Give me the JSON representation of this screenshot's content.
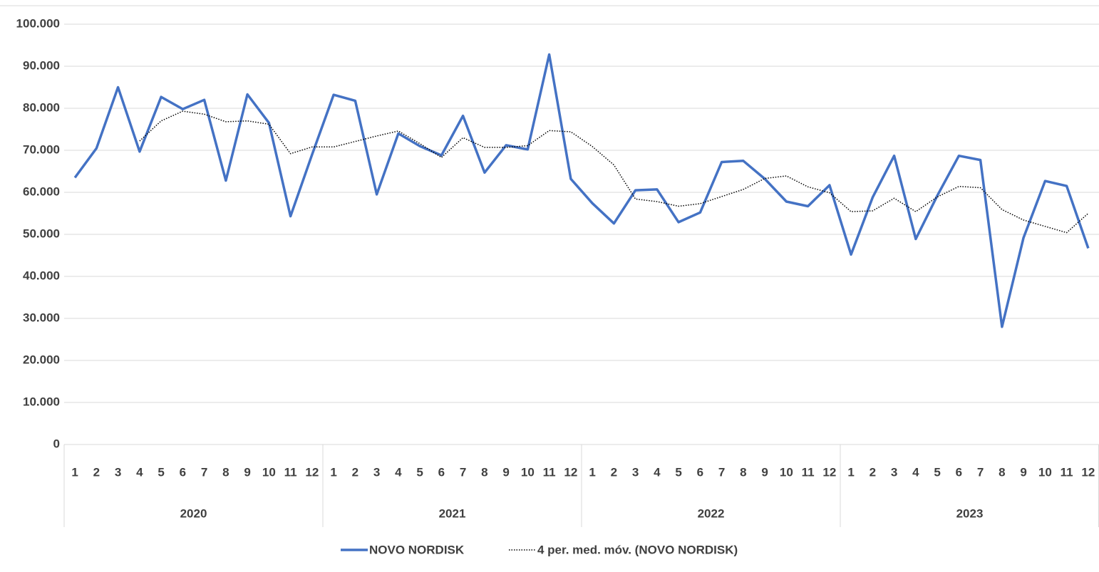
{
  "chart_data": {
    "type": "line",
    "categories": [
      "1",
      "2",
      "3",
      "4",
      "5",
      "6",
      "7",
      "8",
      "9",
      "10",
      "11",
      "12",
      "1",
      "2",
      "3",
      "4",
      "5",
      "6",
      "7",
      "8",
      "9",
      "10",
      "11",
      "12",
      "1",
      "2",
      "3",
      "4",
      "5",
      "6",
      "7",
      "8",
      "9",
      "10",
      "11",
      "12",
      "1",
      "2",
      "3",
      "4",
      "5",
      "6",
      "7",
      "8",
      "9",
      "10",
      "11",
      "12"
    ],
    "groups": [
      "2020",
      "2021",
      "2022",
      "2023"
    ],
    "series": [
      {
        "name": "NOVO NORDISK",
        "color": "#4472c4",
        "dash": "solid",
        "values": [
          63500,
          70500,
          85000,
          69700,
          82700,
          79800,
          82000,
          62800,
          83300,
          76500,
          54300,
          69000,
          83200,
          81800,
          59500,
          74000,
          71000,
          68800,
          78200,
          64700,
          71200,
          70200,
          92800,
          63200,
          57400,
          52600,
          60500,
          60700,
          52900,
          55200,
          67200,
          67500,
          63200,
          57800,
          56700,
          61700,
          45200,
          58800,
          68700,
          48900,
          59200,
          68700,
          67700,
          28000,
          49200,
          62700,
          61500,
          46700
        ]
      },
      {
        "name": "4 per. med. móv. (NOVO NORDISK)",
        "color": "#000000",
        "dash": "dotted",
        "values": [
          null,
          null,
          null,
          72200,
          77000,
          79300,
          78600,
          76800,
          77000,
          76200,
          69200,
          70800,
          70800,
          72100,
          73400,
          74600,
          71600,
          68300,
          73000,
          70700,
          70700,
          71100,
          74700,
          74400,
          70900,
          66500,
          58400,
          57800,
          56700,
          57300,
          59000,
          60700,
          63300,
          63900,
          61300,
          59900,
          55400,
          55600,
          58600,
          55400,
          58900,
          61400,
          61100,
          55900,
          53400,
          51900,
          50400,
          55000
        ]
      }
    ],
    "ylim": [
      0,
      100000
    ],
    "yticks": [
      0,
      {
        "value": 10000,
        "label": "10.000"
      },
      {
        "value": 20000,
        "label": "20.000"
      },
      {
        "value": 30000,
        "label": "30.000"
      },
      {
        "value": 40000,
        "label": "40.000"
      },
      {
        "value": 50000,
        "label": "50.000"
      },
      {
        "value": 60000,
        "label": "60.000"
      },
      {
        "value": 70000,
        "label": "70.000"
      },
      {
        "value": 80000,
        "label": "80.000"
      },
      {
        "value": 90000,
        "label": "90.000"
      },
      {
        "value": 100000,
        "label": "100.000"
      }
    ],
    "grid": true,
    "legend": "bottom"
  }
}
